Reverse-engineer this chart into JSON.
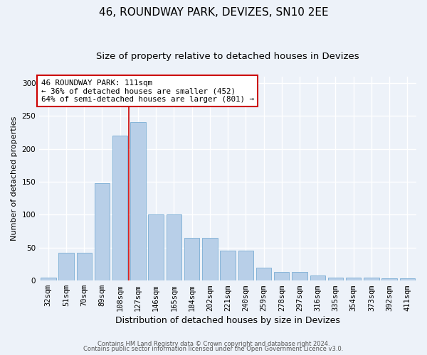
{
  "title": "46, ROUNDWAY PARK, DEVIZES, SN10 2EE",
  "subtitle": "Size of property relative to detached houses in Devizes",
  "xlabel": "Distribution of detached houses by size in Devizes",
  "ylabel": "Number of detached properties",
  "categories": [
    "32sqm",
    "51sqm",
    "70sqm",
    "89sqm",
    "108sqm",
    "127sqm",
    "146sqm",
    "165sqm",
    "184sqm",
    "202sqm",
    "221sqm",
    "240sqm",
    "259sqm",
    "278sqm",
    "297sqm",
    "316sqm",
    "335sqm",
    "354sqm",
    "373sqm",
    "392sqm",
    "411sqm"
  ],
  "bar_values": [
    5,
    42,
    42,
    148,
    220,
    240,
    100,
    100,
    65,
    65,
    45,
    45,
    20,
    13,
    13,
    8,
    5,
    5,
    5,
    3,
    3
  ],
  "bar_color": "#b8cfe8",
  "bar_edge_color": "#7aadd4",
  "vline_x": 4.5,
  "vline_color": "#cc0000",
  "box_text": "46 ROUNDWAY PARK: 111sqm\n← 36% of detached houses are smaller (452)\n64% of semi-detached houses are larger (801) →",
  "box_color": "#cc0000",
  "footer1": "Contains HM Land Registry data © Crown copyright and database right 2024.",
  "footer2": "Contains public sector information licensed under the Open Government Licence v3.0.",
  "bg_color": "#edf2f9",
  "grid_color": "#ffffff",
  "title_fontsize": 11,
  "subtitle_fontsize": 9.5,
  "tick_fontsize": 7.5,
  "ylabel_fontsize": 8,
  "xlabel_fontsize": 9,
  "footer_fontsize": 6,
  "ylim": [
    0,
    310
  ],
  "yticks": [
    0,
    50,
    100,
    150,
    200,
    250,
    300
  ]
}
